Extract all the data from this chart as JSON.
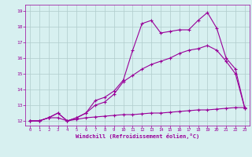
{
  "line1_x": [
    0,
    1,
    2,
    3,
    4,
    5,
    6,
    7,
    8,
    9,
    10,
    11,
    12,
    13,
    14,
    15,
    16,
    17,
    18,
    19,
    20,
    21,
    22,
    23
  ],
  "line1_y": [
    12,
    12,
    12.2,
    12.2,
    12.0,
    12.1,
    12.2,
    12.25,
    12.3,
    12.35,
    12.4,
    12.4,
    12.45,
    12.5,
    12.5,
    12.55,
    12.6,
    12.65,
    12.7,
    12.7,
    12.75,
    12.8,
    12.85,
    12.85
  ],
  "line2_x": [
    0,
    1,
    2,
    3,
    4,
    5,
    6,
    7,
    8,
    9,
    10,
    11,
    12,
    13,
    14,
    15,
    16,
    17,
    18,
    19,
    20,
    21,
    22,
    23
  ],
  "line2_y": [
    12,
    12,
    12.2,
    12.5,
    12.0,
    12.2,
    12.5,
    13.3,
    13.5,
    13.9,
    14.6,
    16.5,
    18.2,
    18.4,
    17.6,
    17.7,
    17.8,
    17.8,
    18.4,
    18.9,
    17.9,
    16.0,
    15.3,
    12.8
  ],
  "line3_x": [
    0,
    1,
    2,
    3,
    4,
    5,
    6,
    7,
    8,
    9,
    10,
    11,
    12,
    13,
    14,
    15,
    16,
    17,
    18,
    19,
    20,
    21,
    22,
    23
  ],
  "line3_y": [
    12,
    12,
    12.2,
    12.5,
    12.0,
    12.2,
    12.5,
    13.0,
    13.2,
    13.7,
    14.5,
    14.9,
    15.3,
    15.6,
    15.8,
    16.0,
    16.3,
    16.5,
    16.6,
    16.8,
    16.5,
    15.8,
    15.0,
    12.8
  ],
  "line_color": "#990099",
  "marker": "+",
  "bg_color": "#d7f0f0",
  "grid_color": "#b0cccc",
  "xlabel": "Windchill (Refroidissement éolien,°C)",
  "xlabel_color": "#990099",
  "ylabel_ticks": [
    12,
    13,
    14,
    15,
    16,
    17,
    18,
    19
  ],
  "xlim": [
    -0.5,
    23.5
  ],
  "ylim": [
    11.7,
    19.4
  ],
  "xticks": [
    0,
    1,
    2,
    3,
    4,
    5,
    6,
    7,
    8,
    9,
    10,
    11,
    12,
    13,
    14,
    15,
    16,
    17,
    18,
    19,
    20,
    21,
    22,
    23
  ]
}
